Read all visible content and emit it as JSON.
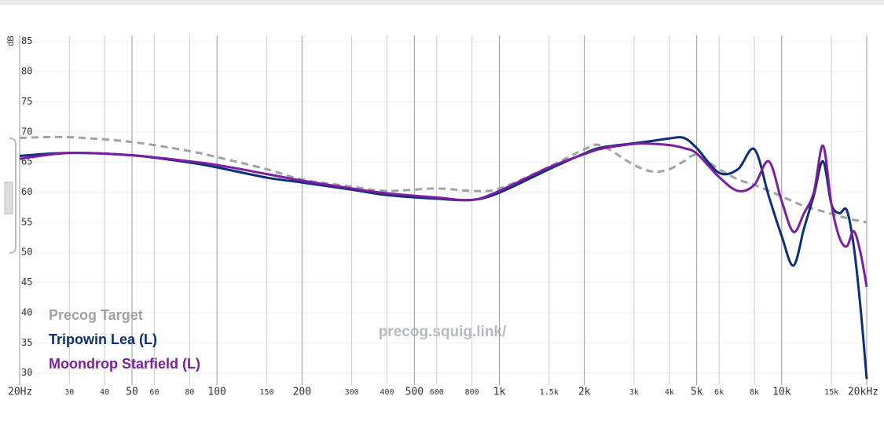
{
  "chart_data": {
    "type": "line",
    "y_label": "dB",
    "watermark": "precog.squig.link/",
    "log_x": true,
    "grid": true,
    "xlim": [
      20,
      20000
    ],
    "ylim": [
      28,
      86
    ],
    "xticks": [
      {
        "value": 20,
        "label": "20Hz"
      },
      30,
      40,
      50,
      60,
      80,
      100,
      150,
      200,
      300,
      400,
      500,
      600,
      800,
      {
        "value": 1000,
        "label": "1k"
      },
      {
        "value": 1500,
        "label": "1.5k"
      },
      {
        "value": 2000,
        "label": "2k"
      },
      {
        "value": 3000,
        "label": "3k"
      },
      {
        "value": 4000,
        "label": "4k"
      },
      {
        "value": 5000,
        "label": "5k"
      },
      {
        "value": 6000,
        "label": "6k"
      },
      {
        "value": 8000,
        "label": "8k"
      },
      {
        "value": 10000,
        "label": "10k"
      },
      {
        "value": 15000,
        "label": "15k"
      },
      {
        "value": 20000,
        "label": "20kHz"
      }
    ],
    "yticks": [
      30,
      35,
      40,
      45,
      50,
      55,
      60,
      65,
      70,
      75,
      80,
      85
    ],
    "x": [
      20,
      30,
      50,
      80,
      100,
      150,
      200,
      300,
      400,
      600,
      800,
      1000,
      1500,
      2000,
      2300,
      3000,
      3500,
      4000,
      4500,
      5000,
      6000,
      7000,
      8000,
      9000,
      10000,
      11000,
      12000,
      13000,
      14000,
      15000,
      16000,
      17000,
      18000,
      19000,
      20000
    ],
    "series": [
      {
        "name": "Precog Target",
        "color": "#9ea3a8",
        "dashed": true,
        "values": [
          69.0,
          69.1,
          68.3,
          66.8,
          65.8,
          63.8,
          62.1,
          60.9,
          60.2,
          60.6,
          60.2,
          60.6,
          64.2,
          67.1,
          67.7,
          64.5,
          63.4,
          63.8,
          65.1,
          66.1,
          63.8,
          62.1,
          61.2,
          60.2,
          59.3,
          58.4,
          57.7,
          57.2,
          56.8,
          56.4,
          56.0,
          55.7,
          55.4,
          55.2,
          55.0
        ]
      },
      {
        "name": "Tripowin Lea (L)",
        "color": "#0d2f78",
        "dashed": false,
        "values": [
          66.0,
          66.5,
          66.1,
          64.9,
          64.1,
          62.4,
          61.6,
          60.4,
          59.5,
          58.9,
          58.7,
          59.9,
          63.8,
          66.4,
          67.4,
          68.1,
          68.5,
          68.9,
          69.0,
          67.3,
          63.2,
          63.8,
          67.1,
          59.3,
          52.7,
          47.8,
          54.0,
          59.5,
          65.1,
          58.0,
          56.5,
          57.0,
          51.0,
          41.0,
          29.0
        ]
      },
      {
        "name": "Moondrop Starfield (L)",
        "color": "#7b1fa2",
        "dashed": false,
        "values": [
          65.5,
          66.5,
          66.1,
          65.1,
          64.5,
          63.0,
          61.9,
          60.6,
          59.8,
          59.1,
          58.7,
          60.2,
          64.1,
          66.3,
          67.2,
          68.0,
          68.0,
          67.8,
          67.3,
          66.4,
          62.5,
          60.2,
          61.2,
          65.1,
          58.5,
          53.4,
          56.5,
          60.0,
          67.7,
          58.0,
          52.5,
          51.0,
          53.5,
          50.0,
          44.3
        ]
      }
    ]
  }
}
